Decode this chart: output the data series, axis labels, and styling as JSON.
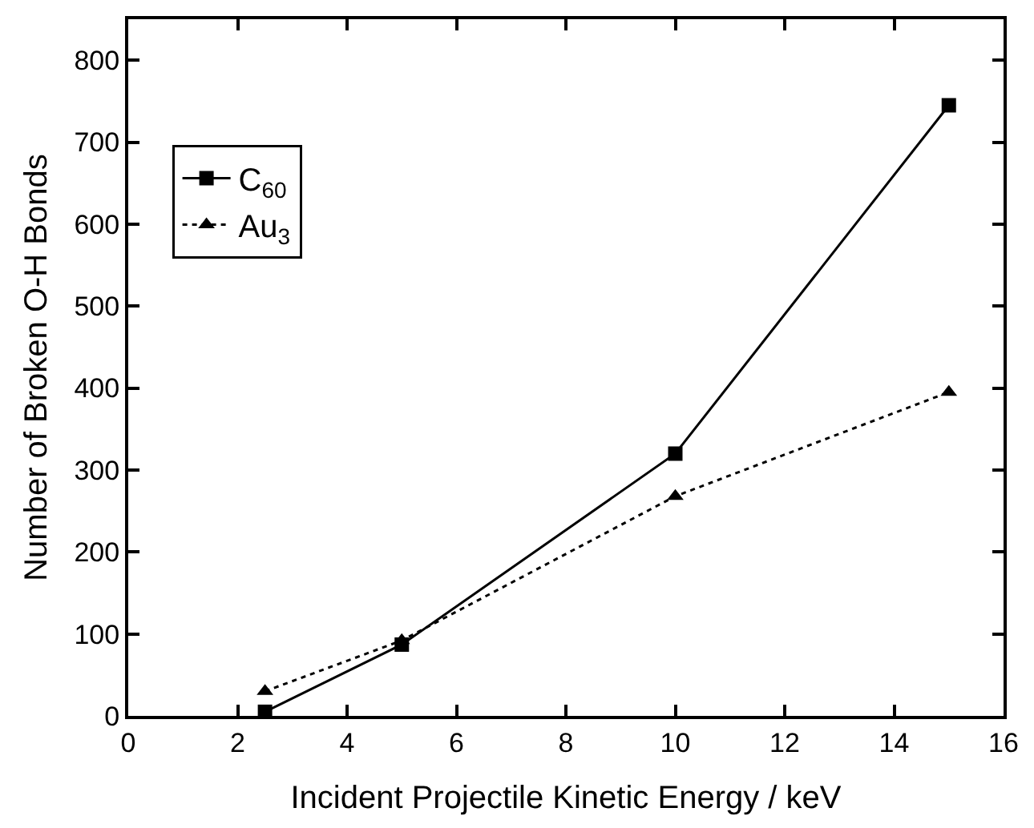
{
  "chart_data": {
    "type": "line",
    "xlabel": "Incident Projectile Kinetic Energy / keV",
    "ylabel": "Number of Broken O-H Bonds",
    "x": [
      2.5,
      5,
      10,
      15
    ],
    "series": [
      {
        "name": "C$_{60}$",
        "color": "#000000",
        "values": [
          5,
          87,
          320,
          745
        ],
        "marker": "square",
        "line_style": "solid"
      },
      {
        "name": "Au$_{3}$",
        "color": "#000000",
        "values": [
          30,
          92,
          268,
          395
        ],
        "marker": "triangle",
        "line_style": "dotted"
      }
    ],
    "xlim": [
      0,
      16
    ],
    "xticks": [
      0,
      2,
      4,
      6,
      8,
      10,
      12,
      14,
      16
    ],
    "ylim": [
      0,
      850
    ],
    "yticks": [
      0,
      100,
      200,
      300,
      400,
      500,
      600,
      700,
      800
    ],
    "grid": false,
    "legend": "top left"
  }
}
